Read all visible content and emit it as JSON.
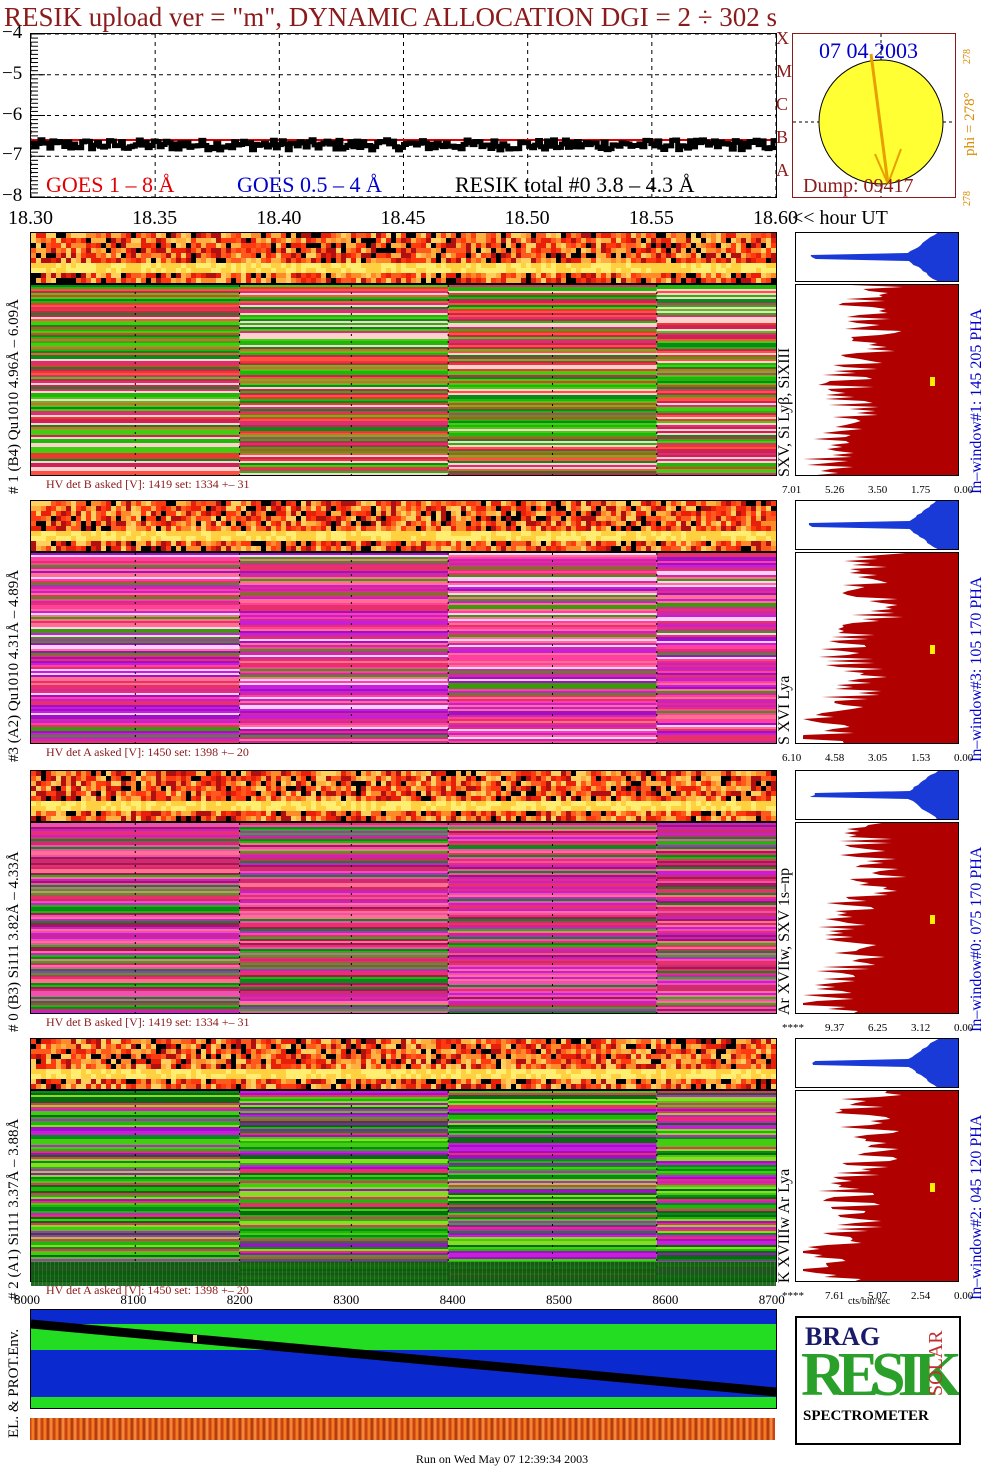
{
  "header": {
    "title": "RESIK upload ver = \"m\", DYNAMIC ALLOCATION  DGI =   2 ÷ 302 s"
  },
  "goes_legend": {
    "goes_1_8": "GOES 1 – 8 Å",
    "goes_05_4": "GOES 0.5 – 4 Å",
    "resik_total": "RESIK total #0  3.8 – 4.3 Å",
    "color_1_8": "#e00000",
    "color_05_4": "#0000cc"
  },
  "chart_data": [
    {
      "type": "line",
      "name": "goes-flux",
      "y_ticks": [
        "−4",
        "−5",
        "−6",
        "−7",
        "−8"
      ],
      "ylim": [
        -8,
        -4
      ],
      "x_ticks": [
        "18.30",
        "18.35",
        "18.40",
        "18.45",
        "18.50",
        "18.55",
        "18.60"
      ],
      "xlim": [
        18.3,
        18.6
      ],
      "x_unit": "<< hour UT",
      "resik_level": -6.72,
      "goes_1_8_level": -6.6,
      "grid": true
    },
    {
      "type": "heatmap",
      "name": "channel-1",
      "label": "# 1 (B4) Qu1010 4.96Å – 6.09Å",
      "lines": "SXV, Si Lyβ, SiXIII",
      "pha": "In–window#1:  145 205 PHA",
      "hv": "HV det B asked [V]:  1419 set:  1334 +–   31",
      "pha_ticks": [
        "7.01",
        "5.26",
        "3.50",
        "1.75",
        "0.00"
      ]
    },
    {
      "type": "heatmap",
      "name": "channel-3",
      "label": "#3 (A2) Qu1010  4.31Å – 4.89Å",
      "lines": "S XVI Lya",
      "pha": "In–window#3:  105 170 PHA",
      "hv": "HV det A asked [V]:  1450 set:  1398 +–   20",
      "pha_ticks": [
        "6.10",
        "4.58",
        "3.05",
        "1.53",
        "0.00"
      ]
    },
    {
      "type": "heatmap",
      "name": "channel-0",
      "label": "# 0 (B3) Si111  3.82Å – 4.33Å",
      "lines": "Ar XVIIw,  SXV  1s–np",
      "pha": "In–window#0:  075 170 PHA",
      "hv": "HV det B asked [V]:  1419 set:  1334 +–   31",
      "pha_ticks": [
        "****",
        "9.37",
        "6.25",
        "3.12",
        "0.00"
      ]
    },
    {
      "type": "heatmap",
      "name": "channel-2",
      "label": "# 2 (A1) Si111  3.37Å – 3.88Å",
      "lines": "K XVIIIw  Ar Lya",
      "pha": "In–window#2:  045 120 PHA",
      "hv": "HV det A asked [V]:  1450 set:  1398 +–   20",
      "pha_ticks": [
        "****",
        "7.61",
        "5.07",
        "2.54",
        "0.00"
      ]
    }
  ],
  "sun": {
    "date": "07 04 2003",
    "dump": "Dump: 09417",
    "phi": "phi = 278°",
    "phi_small": "278",
    "phi_small2": "278",
    "classes": [
      "X",
      "M",
      "C",
      "B",
      "A"
    ]
  },
  "env": {
    "label": "EL. & PROT.Env.",
    "x_ticks": [
      "8000",
      "8100",
      "8200",
      "8300",
      "8400",
      "8500",
      "8600",
      "8700"
    ],
    "cts_label": "cts/bin/sec"
  },
  "logo": {
    "big": "RESIK",
    "top": "BRAG",
    "side": "SOLAR",
    "bottom": "SPECTROMETER"
  },
  "footer": {
    "run": "Run on Wed May 07 12:39:34 2003"
  }
}
